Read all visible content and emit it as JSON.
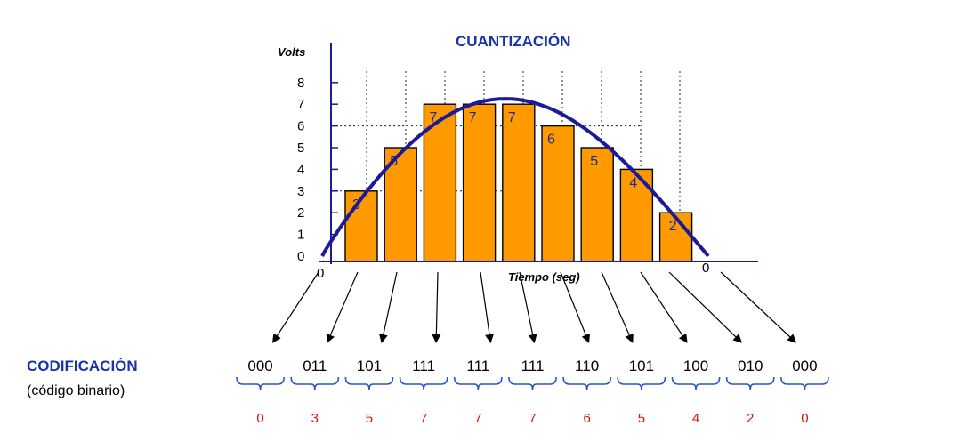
{
  "quantization": {
    "title": "CUANTIZACIÓN",
    "y_axis_label": "Volts",
    "x_axis_label": "Tiempo (seg)",
    "x_start_label": "0",
    "x_end_label": "0",
    "y_ticks": [
      "0",
      "1",
      "2",
      "3",
      "4",
      "5",
      "6",
      "7",
      "8"
    ]
  },
  "chart_data": {
    "type": "bar",
    "ylim": [
      0,
      8
    ],
    "values": [
      3,
      5,
      7,
      7,
      7,
      6,
      5,
      4,
      2
    ],
    "bar_color": "#ff9900",
    "curve_color": "#1a1a9a"
  },
  "encoding": {
    "title": "CODIFICACIÓN",
    "subtitle": "(código binario)",
    "codes": [
      "000",
      "011",
      "101",
      "111",
      "111",
      "111",
      "110",
      "101",
      "100",
      "010",
      "000"
    ],
    "decimals": [
      "0",
      "3",
      "5",
      "7",
      "7",
      "7",
      "6",
      "5",
      "4",
      "2",
      "0"
    ]
  }
}
